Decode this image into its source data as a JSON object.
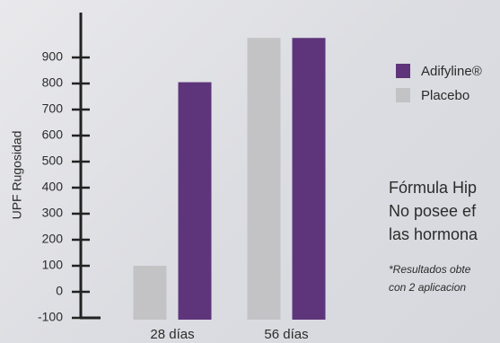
{
  "chart_data": {
    "type": "bar",
    "categories": [
      "28 días",
      "56 días"
    ],
    "series": [
      {
        "name": "Placebo",
        "values": [
          100,
          975
        ],
        "color": "#c3c3c5"
      },
      {
        "name": "Adifyline®",
        "values": [
          805,
          975
        ],
        "color": "#5e357b"
      }
    ],
    "ylabel": "UPF Rugosidad",
    "ylim": [
      -100,
      1100
    ],
    "yticks": [
      -100,
      0,
      100,
      200,
      300,
      400,
      500,
      600,
      700,
      800,
      900
    ],
    "ytick_labels": [
      "-100",
      "0",
      "100",
      "200",
      "300",
      "400",
      "500",
      "600",
      "700",
      "800",
      "900"
    ],
    "grid": false,
    "legend_position": "right"
  },
  "legend": {
    "items": [
      {
        "label": "Adifyline®",
        "color": "#5e357b"
      },
      {
        "label": "Placebo",
        "color": "#c3c3c5"
      }
    ]
  },
  "description": {
    "line1": "Fórmula Hip",
    "line2": "No posee ef",
    "line3": "las hormona"
  },
  "note": {
    "line1": "*Resultados obte",
    "line2": "con 2 aplicacion"
  }
}
